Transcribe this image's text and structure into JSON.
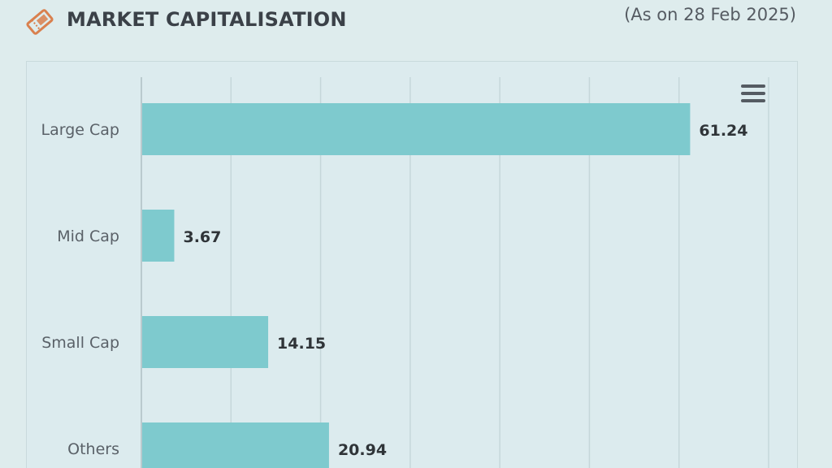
{
  "header": {
    "title": "MARKET CAPITALISATION",
    "date_note": "(As on 28 Feb 2025)",
    "icon": "ticket-icon"
  },
  "menu": {
    "icon": "hamburger-menu-icon"
  },
  "colors": {
    "bar": "#7ecace",
    "accent_icon": "#d9804e",
    "title": "#3b4148",
    "gridline": "#c5d7da"
  },
  "chart_data": {
    "type": "bar",
    "orientation": "horizontal",
    "categories": [
      "Large Cap",
      "Mid Cap",
      "Small Cap",
      "Others"
    ],
    "values": [
      61.24,
      3.67,
      14.15,
      20.94
    ],
    "data_labels": [
      "61.24",
      "3.67",
      "14.15",
      "20.94"
    ],
    "xlim": [
      0,
      70
    ],
    "grid": true,
    "legend": "none"
  }
}
